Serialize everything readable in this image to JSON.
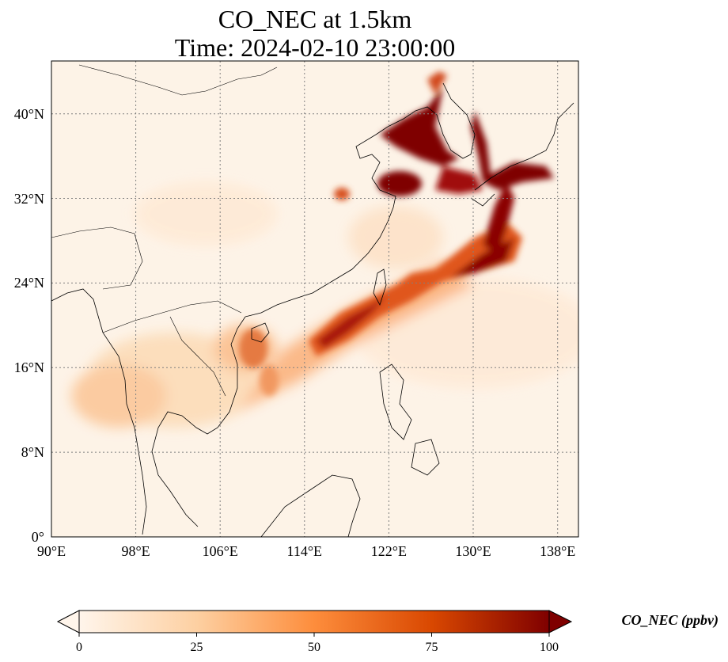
{
  "figure": {
    "title_line1": "CO_NEC at 1.5km",
    "title_line2": "Time: 2024-02-10 23:00:00"
  },
  "map": {
    "lon_range": [
      90,
      140
    ],
    "lat_range": [
      0,
      45
    ],
    "lon_ticks": [
      {
        "value": 90,
        "label": "90°E"
      },
      {
        "value": 98,
        "label": "98°E"
      },
      {
        "value": 106,
        "label": "106°E"
      },
      {
        "value": 114,
        "label": "114°E"
      },
      {
        "value": 122,
        "label": "122°E"
      },
      {
        "value": 130,
        "label": "130°E"
      },
      {
        "value": 138,
        "label": "138°E"
      }
    ],
    "lat_ticks": [
      {
        "value": 0,
        "label": "0°"
      },
      {
        "value": 8,
        "label": "8°N"
      },
      {
        "value": 16,
        "label": "16°N"
      },
      {
        "value": 24,
        "label": "24°N"
      },
      {
        "value": 32,
        "label": "32°N"
      },
      {
        "value": 40,
        "label": "40°N"
      }
    ],
    "gridlines": true,
    "colormap": [
      "#fff5eb",
      "#fdd0a2",
      "#fd8d3c",
      "#d94801",
      "#7f0000"
    ]
  },
  "colorbar": {
    "label": "CO_NEC (ppbv)",
    "range": [
      0,
      100
    ],
    "ticks": [
      {
        "value": 0,
        "label": "0"
      },
      {
        "value": 25,
        "label": "25"
      },
      {
        "value": 50,
        "label": "50"
      },
      {
        "value": 75,
        "label": "75"
      },
      {
        "value": 100,
        "label": "100"
      }
    ],
    "extend": "both"
  }
}
